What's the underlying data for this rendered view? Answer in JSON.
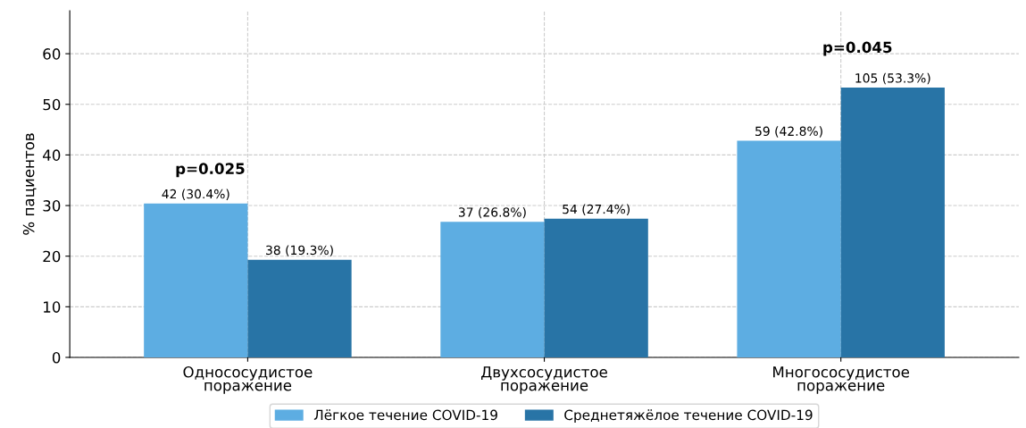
{
  "chart_data": {
    "type": "bar",
    "ylabel": "% пациентов",
    "categories": [
      "Однососудистое\nпоражение",
      "Двухсосудистое\nпоражение",
      "Многососудистое\nпоражение"
    ],
    "series": [
      {
        "name": "Лёгкое течение COVID-19",
        "color": "#5dade2",
        "values": [
          30.4,
          26.8,
          42.8
        ],
        "value_labels": [
          "42 (30.4%)",
          "37 (26.8%)",
          "59 (42.8%)"
        ]
      },
      {
        "name": "Среднетяжёлое течение COVID-19",
        "color": "#2874a6",
        "values": [
          19.3,
          27.4,
          53.3
        ],
        "value_labels": [
          "38 (19.3%)",
          "54 (27.4%)",
          "105 (53.3%)"
        ]
      }
    ],
    "ylim": [
      0,
      68.5
    ],
    "yticks": [
      0,
      10,
      20,
      30,
      40,
      50,
      60
    ],
    "grid": true,
    "legend": "bottom",
    "annotations": [
      "p=0.025",
      "p=0.045"
    ]
  }
}
